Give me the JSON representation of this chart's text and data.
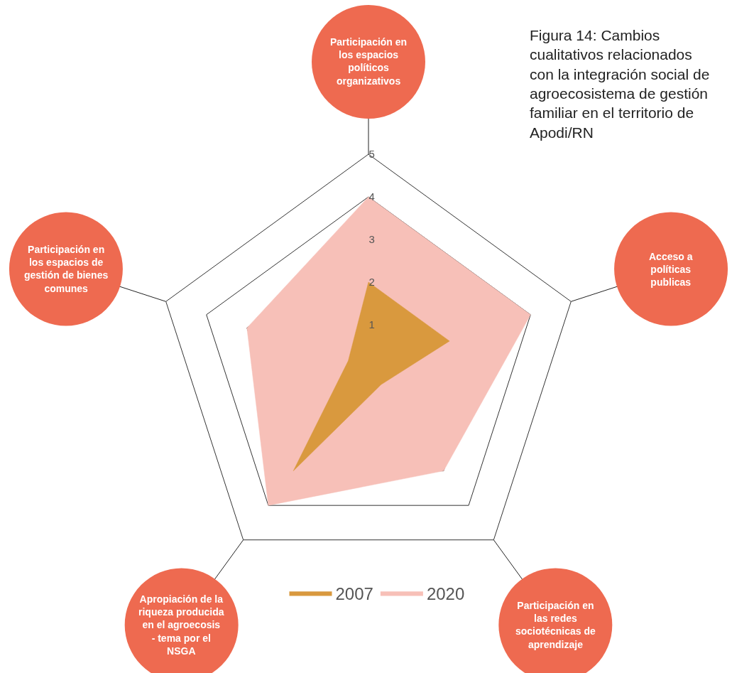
{
  "chart_data": {
    "type": "radar",
    "title": "Figura 14: Cambios cualitativos relacionados con la integración social de agroecosistema de gestión familiar en el territorio de Apodi/RN",
    "categories": [
      "Participación en los espacios políticos organizativos",
      "Acceso a políticas publicas",
      "Participación en las redes sociotécnicas de aprendizaje",
      "Apropiación de la riqueza producida en el agroecosis - tema por el NSGA",
      "Participación en los espacios de gestión de bienes comunes"
    ],
    "series": [
      {
        "name": "2020",
        "color": "#f7c0b8",
        "values": [
          4,
          4,
          3,
          4,
          3
        ]
      },
      {
        "name": "2007",
        "color": "#d9993e",
        "values": [
          2,
          2,
          0.5,
          3,
          0.5
        ]
      }
    ],
    "ylim": [
      0,
      5
    ],
    "yticks": [
      1,
      2,
      3,
      4,
      5
    ],
    "grid": true,
    "legend": "bottom"
  }
}
